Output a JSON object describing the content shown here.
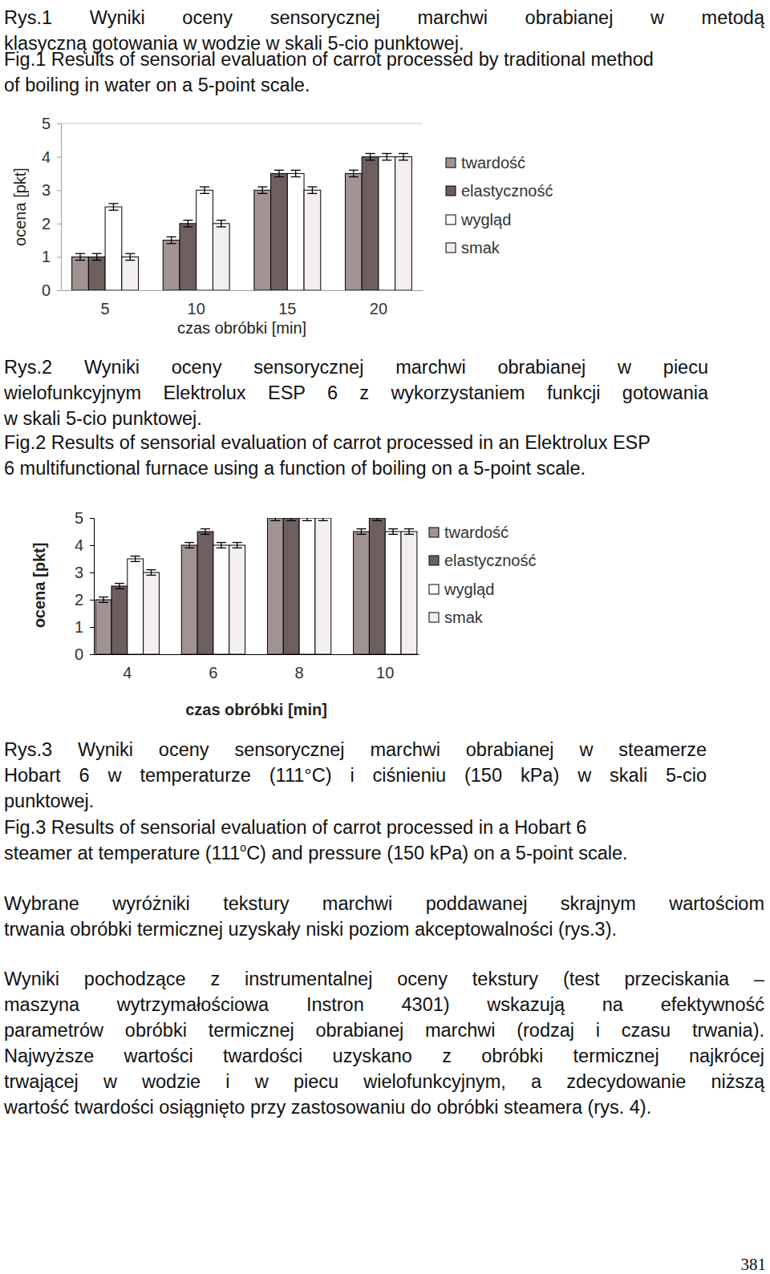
{
  "document": {
    "blocks": [
      {
        "align": "justify",
        "lines": [
          "Rys.1 Wyniki oceny sensorycznej marchwi obrabianej w metodą",
          "klasyczną gotowania w wodzie w skali 5-cio punktowej."
        ]
      },
      {
        "align": "left",
        "lines": [
          "Fig.1 Results of sensorial evaluation of carrot processed by traditional method",
          "of boiling in water on a 5-point scale."
        ]
      },
      {
        "align": "justify",
        "lines": [
          "Rys.2 Wyniki oceny sensorycznej marchwi obrabianej w piecu",
          "wielofunkcyjnym Elektrolux ESP 6 z wykorzystaniem funkcji gotowania",
          "w skali 5-cio punktowej."
        ]
      },
      {
        "align": "left",
        "lines": [
          "Fig.2 Results of sensorial evaluation of carrot processed in an Elektrolux ESP",
          "6 multifunctional furnace using a function of boiling on a 5-point scale."
        ]
      },
      {
        "align": "justify",
        "lines": [
          "Rys.3 Wyniki oceny sensorycznej marchwi obrabianej w steamerze",
          "Hobart 6 w temperaturze (111°C) i ciśnieniu (150 kPa) w skali 5-cio",
          "punktowej."
        ]
      },
      {
        "align": "left",
        "lines": [
          "Fig.3 Results of sensorial evaluation of carrot processed in a Hobart 6",
          [
            {
              "text": "steamer at temperature (111"
            },
            {
              "text": "o",
              "sup": true
            },
            {
              "text": "C) and pressure (150 kPa) on a 5-point scale."
            }
          ]
        ]
      },
      {
        "align": "justify",
        "lines": [
          "Wybrane wyróżniki tekstury marchwi poddawanej skrajnym wartościom",
          "trwania obróbki termicznej uzyskały niski poziom akceptowalności (rys.3)."
        ]
      },
      {
        "align": "justify",
        "lines": [
          "Wyniki pochodzące z instrumentalnej oceny tekstury (test przeciskania –",
          "maszyna wytrzymałościowa Instron 4301) wskazują na efektywność",
          "parametrów obróbki termicznej obrabianej marchwi (rodzaj i czasu trwania).",
          "Najwyższe wartości twardości uzyskano z obróbki termicznej najkrócej",
          "trwającej w wodzie i w piecu wielofunkcyjnym, a zdecydowanie niższą",
          "wartość twardości osiągnięto przy zastosowaniu do obróbki steamera (rys. 4)."
        ]
      }
    ],
    "page_number": "381"
  },
  "chart_data": [
    {
      "type": "bar",
      "x_label": "czas obróbki [min]",
      "y_label": "ocena [pkt]",
      "categories": [
        "5",
        "10",
        "15",
        "20"
      ],
      "ylim": [
        0,
        5
      ],
      "yticks": [
        0,
        1,
        2,
        3,
        4,
        5
      ],
      "legend": "right",
      "series": [
        {
          "name": "twardość",
          "color": "#a29393",
          "values": [
            1,
            1.5,
            3,
            3.5
          ],
          "errors": [
            0.1,
            0.1,
            0.1,
            0.1
          ]
        },
        {
          "name": "elastyczność",
          "color": "#6e5f5f",
          "values": [
            1,
            2,
            3.5,
            4
          ],
          "errors": [
            0.1,
            0.1,
            0.1,
            0.1
          ]
        },
        {
          "name": "wygląd",
          "color": "#ffffff",
          "values": [
            2.5,
            3,
            3.5,
            4
          ],
          "errors": [
            0.1,
            0.1,
            0.1,
            0.1
          ]
        },
        {
          "name": "smak",
          "color": "#f3efef",
          "values": [
            1,
            2,
            3,
            4
          ],
          "errors": [
            0.1,
            0.1,
            0.1,
            0.1
          ]
        }
      ]
    },
    {
      "type": "bar",
      "x_label": "czas obróbki [min]",
      "y_label": "ocena [pkt]",
      "categories": [
        "4",
        "6",
        "8",
        "10"
      ],
      "ylim": [
        0,
        5
      ],
      "yticks": [
        0,
        1,
        2,
        3,
        4,
        5
      ],
      "legend": "right",
      "series": [
        {
          "name": "twardość",
          "color": "#a29393",
          "values": [
            2,
            4,
            5,
            4.5
          ],
          "errors": [
            0.1,
            0.1,
            0.1,
            0.1
          ]
        },
        {
          "name": "elastyczność",
          "color": "#6e5f5f",
          "values": [
            2.5,
            4.5,
            5,
            5
          ],
          "errors": [
            0.1,
            0.1,
            0.1,
            0.1
          ]
        },
        {
          "name": "wygląd",
          "color": "#ffffff",
          "values": [
            3.5,
            4,
            5,
            4.5
          ],
          "errors": [
            0.1,
            0.1,
            0.1,
            0.1
          ]
        },
        {
          "name": "smak",
          "color": "#f3efef",
          "values": [
            3,
            4,
            5,
            4.5
          ],
          "errors": [
            0.1,
            0.1,
            0.1,
            0.1
          ]
        }
      ]
    }
  ]
}
